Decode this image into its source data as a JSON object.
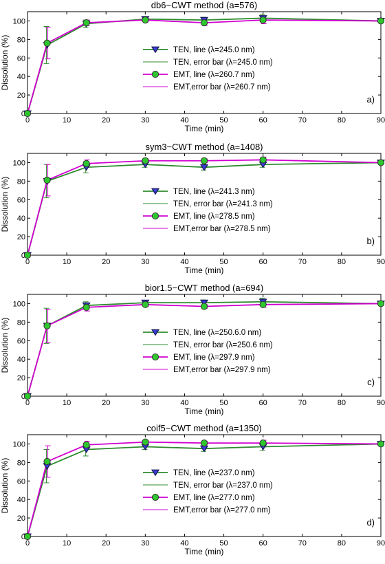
{
  "chart_data": [
    {
      "type": "line",
      "title": "db6−CWT method (a=576)",
      "xlabel": "Time (min)",
      "ylabel": "Dissolution (%)",
      "panel_label": "a)",
      "xlim": [
        0,
        90
      ],
      "ylim": [
        0,
        110
      ],
      "xticks": [
        "0",
        "10",
        "20",
        "30",
        "40",
        "50",
        "60",
        "70",
        "80",
        "90"
      ],
      "yticks": [
        "0",
        "20",
        "40",
        "60",
        "80",
        "100"
      ],
      "legend_position": "center-right",
      "legend": [
        "TEN, line (λ=245.0 nm)",
        "TEN, error bar (λ=245.0 nm)",
        "EMT, line (λ=260.7 nm)",
        "EMT,error bar (λ=260.7 nm)"
      ],
      "x": [
        0,
        5,
        15,
        30,
        45,
        60,
        90
      ],
      "series": [
        {
          "name": "TEN",
          "color": "#2e8b2e",
          "marker": "triangle-down",
          "marker_color": "#3b3bd6",
          "values": [
            0,
            74,
            97,
            102,
            101,
            103,
            100
          ],
          "errors": [
            0,
            20,
            4,
            2,
            3,
            4,
            1
          ]
        },
        {
          "name": "EMT",
          "color": "#d000d0",
          "marker": "circle",
          "marker_color": "#2ec82e",
          "values": [
            0,
            76,
            98,
            101,
            98,
            101,
            100
          ],
          "errors": [
            0,
            17,
            3,
            2,
            3,
            4,
            1
          ]
        }
      ]
    },
    {
      "type": "line",
      "title": "sym3−CWT method (a=1408)",
      "xlabel": "Time (min)",
      "ylabel": "Dissolution (%)",
      "panel_label": "b)",
      "xlim": [
        0,
        90
      ],
      "ylim": [
        0,
        110
      ],
      "xticks": [
        "0",
        "10",
        "20",
        "30",
        "40",
        "50",
        "60",
        "70",
        "80",
        "90"
      ],
      "yticks": [
        "0",
        "20",
        "40",
        "60",
        "80",
        "100"
      ],
      "legend_position": "center-right",
      "legend": [
        "TEN, line (λ=241.3 nm)",
        "TEN, error bar (λ=241.3 nm)",
        "EMT, line (λ=278.5 nm)",
        "EMT,error bar (λ=278.5 nm)"
      ],
      "x": [
        0,
        5,
        15,
        30,
        45,
        60,
        90
      ],
      "series": [
        {
          "name": "TEN",
          "color": "#2e8b2e",
          "marker": "triangle-down",
          "marker_color": "#3b3bd6",
          "values": [
            0,
            80,
            95,
            98,
            95,
            98,
            100
          ],
          "errors": [
            0,
            18,
            6,
            3,
            3,
            3,
            1
          ]
        },
        {
          "name": "EMT",
          "color": "#d000d0",
          "marker": "circle",
          "marker_color": "#2ec82e",
          "values": [
            0,
            81,
            99,
            102,
            102,
            103,
            100
          ],
          "errors": [
            0,
            17,
            4,
            2,
            2,
            3,
            1
          ]
        }
      ]
    },
    {
      "type": "line",
      "title": "bior1.5−CWT method (a=694)",
      "xlabel": "Time (min)",
      "ylabel": "Dissolution (%)",
      "panel_label": "c)",
      "xlim": [
        0,
        90
      ],
      "ylim": [
        0,
        110
      ],
      "xticks": [
        "0",
        "10",
        "20",
        "30",
        "40",
        "50",
        "60",
        "70",
        "80",
        "90"
      ],
      "yticks": [
        "0",
        "20",
        "40",
        "60",
        "80",
        "100"
      ],
      "legend_position": "center-right",
      "legend": [
        "TEN, line (λ=250.6.0 nm)",
        "TEN, error bar (λ=250.6 nm)",
        "EMT, line (λ=297.9 nm)",
        "EMT,error bar (λ=297.9 nm)"
      ],
      "x": [
        0,
        5,
        15,
        30,
        45,
        60,
        90
      ],
      "series": [
        {
          "name": "TEN",
          "color": "#2e8b2e",
          "marker": "triangle-down",
          "marker_color": "#3b3bd6",
          "values": [
            0,
            76,
            98,
            101,
            101,
            102,
            100
          ],
          "errors": [
            0,
            19,
            4,
            2,
            3,
            4,
            1
          ]
        },
        {
          "name": "EMT",
          "color": "#d000d0",
          "marker": "circle",
          "marker_color": "#2ec82e",
          "values": [
            0,
            76,
            96,
            99,
            97,
            99,
            100
          ],
          "errors": [
            0,
            18,
            4,
            2,
            2,
            3,
            1
          ]
        }
      ]
    },
    {
      "type": "line",
      "title": "coif5−CWT method (a=1350)",
      "xlabel": "Time (min)",
      "ylabel": "Dissolution (%)",
      "panel_label": "d)",
      "xlim": [
        0,
        90
      ],
      "ylim": [
        0,
        110
      ],
      "xticks": [
        "0",
        "10",
        "20",
        "30",
        "40",
        "50",
        "60",
        "70",
        "80",
        "90"
      ],
      "yticks": [
        "0",
        "20",
        "40",
        "60",
        "80",
        "100"
      ],
      "legend_position": "center-right",
      "legend": [
        "TEN, line (λ=237.0 nm)",
        "TEN, error bar (λ=237.0 nm)",
        "EMT, line (λ=277.0 nm)",
        "EMT,error bar (λ=277.0 nm)"
      ],
      "x": [
        0,
        5,
        15,
        30,
        45,
        60,
        90
      ],
      "series": [
        {
          "name": "TEN",
          "color": "#2e8b2e",
          "marker": "triangle-down",
          "marker_color": "#3b3bd6",
          "values": [
            0,
            76,
            94,
            97,
            95,
            97,
            100
          ],
          "errors": [
            0,
            18,
            7,
            3,
            3,
            4,
            1
          ]
        },
        {
          "name": "EMT",
          "color": "#d000d0",
          "marker": "circle",
          "marker_color": "#2ec82e",
          "values": [
            0,
            81,
            99,
            102,
            101,
            101,
            100
          ],
          "errors": [
            0,
            17,
            4,
            2,
            2,
            3,
            1
          ]
        }
      ]
    }
  ]
}
